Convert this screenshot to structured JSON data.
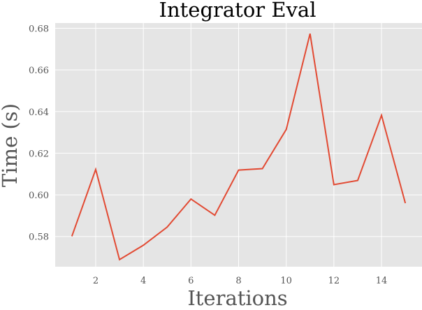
{
  "chart_data": {
    "type": "line",
    "title": "Integrator Eval",
    "xlabel": "Iterations",
    "ylabel": "Time (s)",
    "xlim": [
      0.3,
      15.7
    ],
    "ylim": [
      0.5655,
      0.6825
    ],
    "xticks": [
      2,
      4,
      6,
      8,
      10,
      12,
      14
    ],
    "yticks": [
      0.58,
      0.6,
      0.62,
      0.64,
      0.66,
      0.68
    ],
    "ytick_labels": [
      "0.58",
      "0.60",
      "0.62",
      "0.64",
      "0.66",
      "0.68"
    ],
    "grid": true,
    "series": [
      {
        "color": "#e24a33",
        "x": [
          1,
          2,
          3,
          4,
          5,
          6,
          7,
          8,
          9,
          10,
          11,
          12,
          13,
          14,
          15
        ],
        "y": [
          0.5801,
          0.6122,
          0.5689,
          0.5758,
          0.5845,
          0.598,
          0.5902,
          0.6119,
          0.6126,
          0.6314,
          0.6774,
          0.6049,
          0.6069,
          0.6382,
          0.596
        ]
      }
    ]
  },
  "colors": {
    "plot_background": "#e5e5e5",
    "grid": "#ffffff",
    "text": "#555555",
    "line": "#e24a33"
  }
}
